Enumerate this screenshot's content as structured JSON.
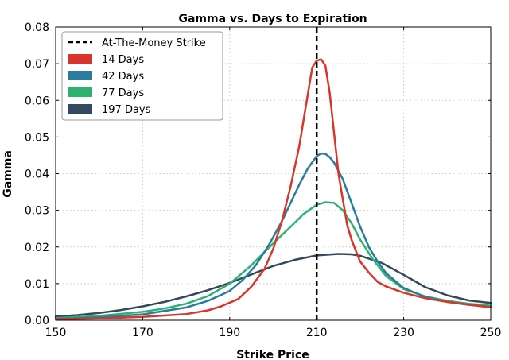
{
  "chart_data": {
    "type": "line",
    "title": "Gamma vs. Days to Expiration",
    "xlabel": "Strike Price",
    "ylabel": "Gamma",
    "xlim": [
      150,
      250
    ],
    "ylim": [
      0,
      0.08
    ],
    "xticks": [
      "150",
      "170",
      "190",
      "210",
      "230",
      "250"
    ],
    "yticks": [
      "0.00",
      "0.01",
      "0.02",
      "0.03",
      "0.04",
      "0.05",
      "0.06",
      "0.07",
      "0.08"
    ],
    "grid": true,
    "legend_position": "top-left",
    "atm_strike": {
      "name": "At-The-Money Strike",
      "x": 210,
      "color": "#000000",
      "style": "dashed"
    },
    "series": [
      {
        "name": "14 Days",
        "color": "#d9352a",
        "x": [
          150,
          160,
          170,
          180,
          185,
          188,
          192,
          195,
          198,
          200,
          202,
          204,
          206,
          208,
          209,
          210,
          211,
          212,
          213,
          214,
          215,
          216,
          217,
          218,
          219,
          220,
          222,
          224,
          226,
          230,
          235,
          240,
          245,
          250
        ],
        "y": [
          0.0003,
          0.0005,
          0.0009,
          0.0017,
          0.0027,
          0.0038,
          0.0058,
          0.0092,
          0.014,
          0.0195,
          0.027,
          0.0365,
          0.0475,
          0.062,
          0.069,
          0.0708,
          0.0712,
          0.0695,
          0.062,
          0.051,
          0.04,
          0.033,
          0.026,
          0.022,
          0.019,
          0.016,
          0.013,
          0.0105,
          0.0092,
          0.0075,
          0.006,
          0.005,
          0.0043,
          0.0035
        ]
      },
      {
        "name": "42 Days",
        "color": "#2a7c9e",
        "x": [
          150,
          160,
          170,
          180,
          185,
          190,
          193,
          196,
          199,
          202,
          204,
          206,
          208,
          210,
          211,
          212,
          213,
          214,
          216,
          218,
          220,
          222,
          224,
          226,
          230,
          235,
          240,
          245,
          250
        ],
        "y": [
          0.0004,
          0.0008,
          0.0016,
          0.0035,
          0.0053,
          0.008,
          0.011,
          0.015,
          0.0205,
          0.027,
          0.032,
          0.037,
          0.0415,
          0.0448,
          0.0455,
          0.0454,
          0.0445,
          0.043,
          0.0385,
          0.032,
          0.0255,
          0.02,
          0.016,
          0.0128,
          0.0088,
          0.0063,
          0.005,
          0.0042,
          0.0036
        ]
      },
      {
        "name": "77 Days",
        "color": "#2eb36e",
        "x": [
          150,
          160,
          170,
          175,
          180,
          185,
          190,
          195,
          200,
          204,
          207,
          210,
          212,
          214,
          216,
          218,
          220,
          223,
          226,
          230,
          235,
          240,
          245,
          250
        ],
        "y": [
          0.0006,
          0.0012,
          0.0023,
          0.0032,
          0.0045,
          0.0066,
          0.01,
          0.015,
          0.021,
          0.0255,
          0.029,
          0.0315,
          0.0322,
          0.032,
          0.03,
          0.0265,
          0.022,
          0.0165,
          0.012,
          0.0085,
          0.0065,
          0.0053,
          0.0045,
          0.004
        ]
      },
      {
        "name": "197 Days",
        "color": "#34495e",
        "x": [
          150,
          155,
          160,
          165,
          170,
          175,
          180,
          185,
          190,
          195,
          200,
          205,
          210,
          215,
          218,
          220,
          225,
          230,
          235,
          240,
          245,
          250
        ],
        "y": [
          0.001,
          0.0014,
          0.002,
          0.0028,
          0.0038,
          0.005,
          0.0065,
          0.0082,
          0.0102,
          0.0125,
          0.0148,
          0.0165,
          0.0177,
          0.0181,
          0.018,
          0.0176,
          0.0156,
          0.0124,
          0.009,
          0.0068,
          0.0054,
          0.0047
        ]
      }
    ]
  }
}
